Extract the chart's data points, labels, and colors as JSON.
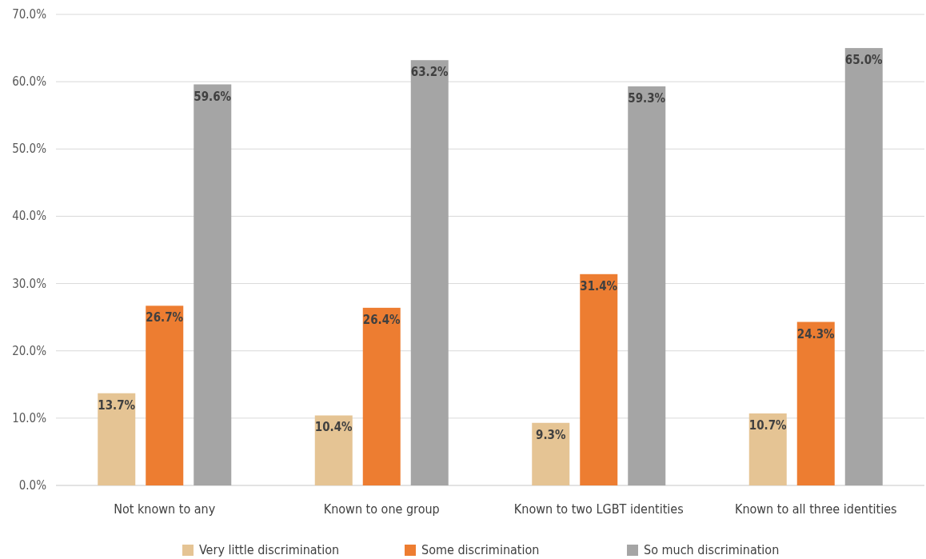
{
  "chart_data": {
    "type": "bar",
    "categories": [
      "Not known to any",
      "Known to one group",
      "Known to two LGBT identities",
      "Known to all three identities"
    ],
    "series": [
      {
        "name": "Very little discrimination",
        "color": "#e5c494",
        "values": [
          13.7,
          10.4,
          9.3,
          10.7
        ],
        "value_labels": [
          "13.7%",
          "10.4%",
          "9.3%",
          "10.7%"
        ]
      },
      {
        "name": "Some discrimination",
        "color": "#ed7d31",
        "values": [
          26.7,
          26.4,
          31.4,
          24.3
        ],
        "value_labels": [
          "26.7%",
          "26.4%",
          "31.4%",
          "24.3%"
        ]
      },
      {
        "name": "So much discrimination",
        "color": "#a5a5a5",
        "values": [
          59.6,
          63.2,
          59.3,
          65.0
        ],
        "value_labels": [
          "59.6%",
          "63.2%",
          "59.3%",
          "65.0%"
        ]
      }
    ],
    "ylim": [
      0,
      70
    ],
    "yticks": [
      {
        "value": 0,
        "label": "0.0%"
      },
      {
        "value": 10,
        "label": "10.0%"
      },
      {
        "value": 20,
        "label": "20.0%"
      },
      {
        "value": 30,
        "label": "30.0%"
      },
      {
        "value": 40,
        "label": "40.0%"
      },
      {
        "value": 50,
        "label": "50.0%"
      },
      {
        "value": 60,
        "label": "60.0%"
      },
      {
        "value": 70,
        "label": "70.0%"
      }
    ],
    "grid": "y",
    "legend": "bottom"
  }
}
